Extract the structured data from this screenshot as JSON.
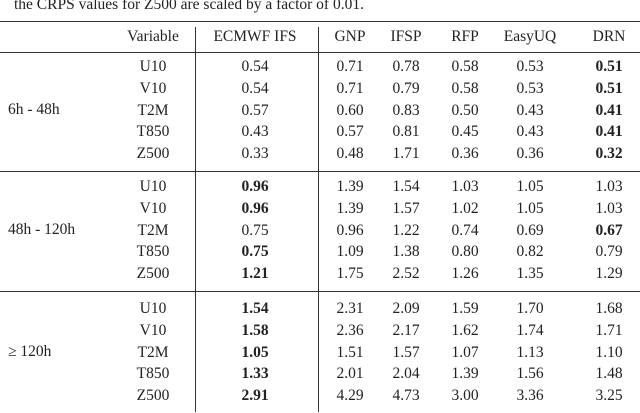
{
  "caption": "the CRPS values for Z500 are scaled by a factor of 0.01.",
  "header": [
    "Variable",
    "ECMWF IFS",
    "GNP",
    "IFSP",
    "RFP",
    "EasyUQ",
    "DRN"
  ],
  "groups": [
    {
      "label": "6h - 48h",
      "rows": [
        {
          "variable": "U10",
          "values": [
            "0.54",
            "0.71",
            "0.78",
            "0.58",
            "0.53",
            "0.51"
          ],
          "bold": 5
        },
        {
          "variable": "V10",
          "values": [
            "0.54",
            "0.71",
            "0.79",
            "0.58",
            "0.53",
            "0.51"
          ],
          "bold": 5
        },
        {
          "variable": "T2M",
          "values": [
            "0.57",
            "0.60",
            "0.83",
            "0.50",
            "0.43",
            "0.41"
          ],
          "bold": 5
        },
        {
          "variable": "T850",
          "values": [
            "0.43",
            "0.57",
            "0.81",
            "0.45",
            "0.43",
            "0.41"
          ],
          "bold": 5
        },
        {
          "variable": "Z500",
          "values": [
            "0.33",
            "0.48",
            "1.71",
            "0.36",
            "0.36",
            "0.32"
          ],
          "bold": 5
        }
      ]
    },
    {
      "label": "48h - 120h",
      "rows": [
        {
          "variable": "U10",
          "values": [
            "0.96",
            "1.39",
            "1.54",
            "1.03",
            "1.05",
            "1.03"
          ],
          "bold": 0
        },
        {
          "variable": "V10",
          "values": [
            "0.96",
            "1.39",
            "1.57",
            "1.02",
            "1.05",
            "1.03"
          ],
          "bold": 0
        },
        {
          "variable": "T2M",
          "values": [
            "0.75",
            "0.96",
            "1.22",
            "0.74",
            "0.69",
            "0.67"
          ],
          "bold": 5
        },
        {
          "variable": "T850",
          "values": [
            "0.75",
            "1.09",
            "1.38",
            "0.80",
            "0.82",
            "0.79"
          ],
          "bold": 0
        },
        {
          "variable": "Z500",
          "values": [
            "1.21",
            "1.75",
            "2.52",
            "1.26",
            "1.35",
            "1.29"
          ],
          "bold": 0
        }
      ]
    },
    {
      "label": "≥ 120h",
      "rows": [
        {
          "variable": "U10",
          "values": [
            "1.54",
            "2.31",
            "2.09",
            "1.59",
            "1.70",
            "1.68"
          ],
          "bold": 0
        },
        {
          "variable": "V10",
          "values": [
            "1.58",
            "2.36",
            "2.17",
            "1.62",
            "1.74",
            "1.71"
          ],
          "bold": 0
        },
        {
          "variable": "T2M",
          "values": [
            "1.05",
            "1.51",
            "1.57",
            "1.07",
            "1.13",
            "1.10"
          ],
          "bold": 0
        },
        {
          "variable": "T850",
          "values": [
            "1.33",
            "2.01",
            "2.04",
            "1.39",
            "1.56",
            "1.48"
          ],
          "bold": 0
        },
        {
          "variable": "Z500",
          "values": [
            "2.91",
            "4.29",
            "4.73",
            "3.00",
            "3.36",
            "3.25"
          ],
          "bold": 0
        }
      ]
    }
  ]
}
